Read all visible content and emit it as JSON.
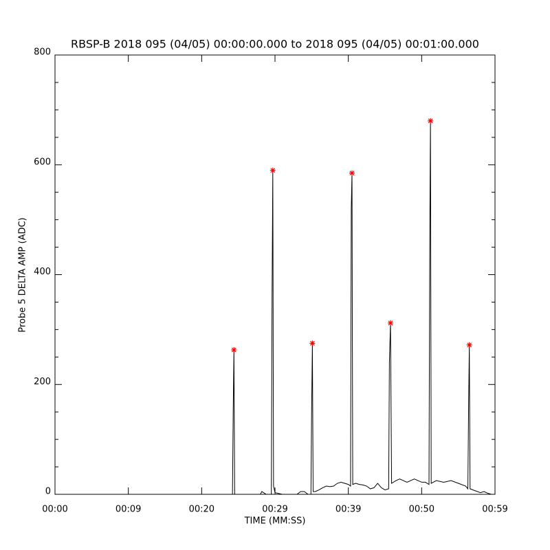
{
  "chart_data": {
    "type": "line",
    "title": "RBSP-B 2018 095 (04/05) 00:00:00.000 to 2018 095 (04/05) 00:01:00.000",
    "x_label": "TIME (MM:SS)",
    "y_label": "Probe 5 DELTA AMP (ADC)",
    "xlim": [
      0,
      60
    ],
    "ylim": [
      0,
      800
    ],
    "xticks": [
      {
        "value": 0,
        "label": "00:00"
      },
      {
        "value": 10,
        "label": "00:09"
      },
      {
        "value": 20,
        "label": "00:20"
      },
      {
        "value": 30,
        "label": "00:29"
      },
      {
        "value": 40,
        "label": "00:39"
      },
      {
        "value": 50,
        "label": "00:50"
      },
      {
        "value": 60,
        "label": "00:59"
      }
    ],
    "yticks": [
      0,
      200,
      400,
      600,
      800
    ],
    "series": [
      {
        "color": "#000000",
        "mode": "line",
        "x": [
          0,
          24.2,
          24.3,
          24.4,
          24.5,
          28.0,
          28.2,
          28.8,
          29.5,
          29.6,
          29.7,
          29.8,
          30.0,
          31.0,
          33.0,
          33.5,
          34.0,
          34.5,
          34.9,
          35.0,
          35.1,
          35.2,
          35.5,
          36,
          36.5,
          37,
          37.5,
          38,
          38.5,
          39,
          39.5,
          40,
          40.3,
          40.4,
          40.5,
          40.6,
          41,
          41.5,
          42,
          42.5,
          43,
          43.5,
          44,
          44.5,
          45,
          45.5,
          45.6,
          45.75,
          45.9,
          46.5,
          47,
          47.5,
          48,
          48.5,
          49,
          49.5,
          50,
          50.5,
          51.0,
          51.1,
          51.2,
          51.3,
          52,
          53,
          54,
          55,
          56,
          56.3,
          56.4,
          56.5,
          56.6,
          57,
          58,
          58.5,
          59,
          59.5,
          60
        ],
        "values": [
          0,
          0,
          150,
          263,
          0,
          0,
          5,
          0,
          0,
          360,
          590,
          15,
          3,
          0,
          0,
          5,
          5,
          0,
          0,
          160,
          275,
          5,
          5,
          8,
          12,
          15,
          14,
          15,
          20,
          22,
          20,
          18,
          15,
          520,
          585,
          18,
          20,
          18,
          17,
          15,
          10,
          12,
          20,
          12,
          8,
          10,
          240,
          312,
          20,
          25,
          28,
          25,
          22,
          25,
          28,
          25,
          22,
          22,
          18,
          450,
          680,
          20,
          25,
          22,
          25,
          20,
          15,
          10,
          160,
          272,
          10,
          8,
          3,
          5,
          2,
          0,
          0
        ]
      },
      {
        "color": "#ff0000",
        "mode": "star",
        "x": [
          24.4,
          29.7,
          35.1,
          40.5,
          45.75,
          51.2,
          56.5
        ],
        "values": [
          263,
          590,
          275,
          585,
          312,
          680,
          272
        ]
      }
    ]
  }
}
